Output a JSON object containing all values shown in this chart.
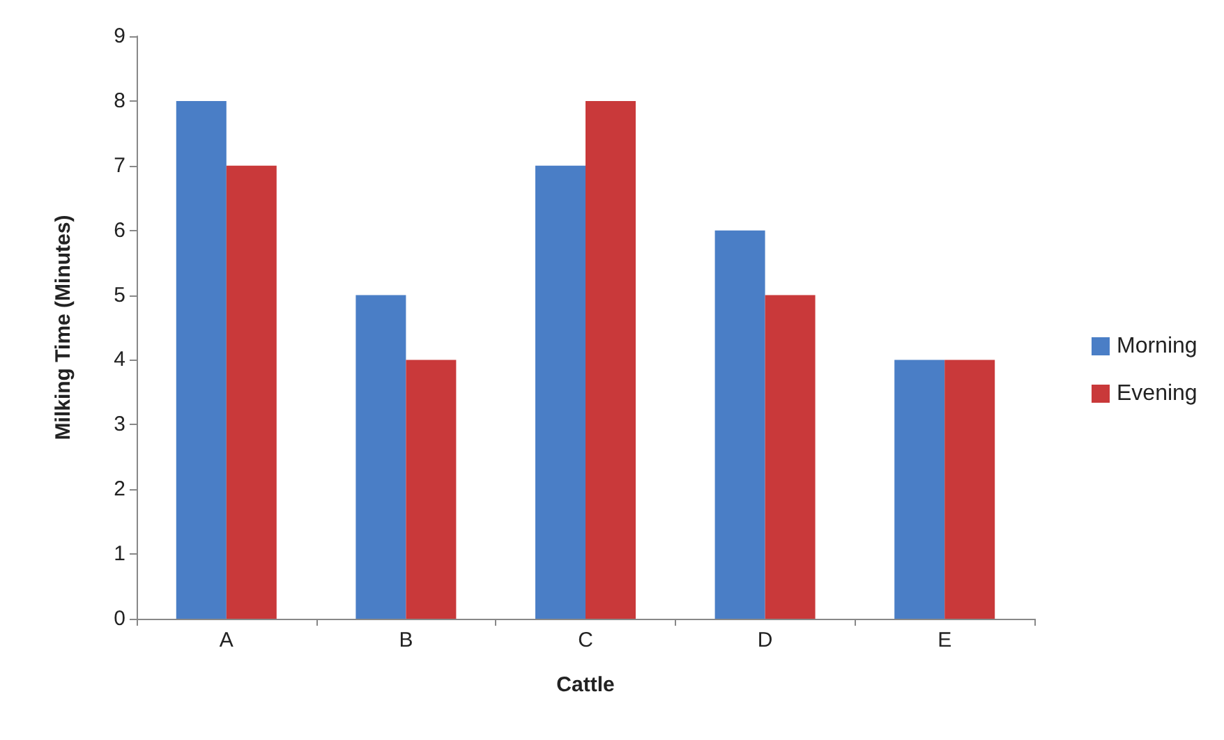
{
  "chart_data": {
    "type": "bar",
    "xlabel": "Cattle",
    "ylabel": "Milking Time (Minutes)",
    "categories": [
      "A",
      "B",
      "C",
      "D",
      "E"
    ],
    "series": [
      {
        "name": "Morning",
        "color": "#4a7ec6",
        "values": [
          8,
          5,
          7,
          6,
          4
        ]
      },
      {
        "name": "Evening",
        "color": "#c9393a",
        "values": [
          7,
          4,
          8,
          5,
          4
        ]
      }
    ],
    "ylim": [
      0,
      9
    ],
    "yticks": [
      0,
      1,
      2,
      3,
      4,
      5,
      6,
      7,
      8,
      9
    ],
    "grid": false,
    "legend": "right"
  }
}
